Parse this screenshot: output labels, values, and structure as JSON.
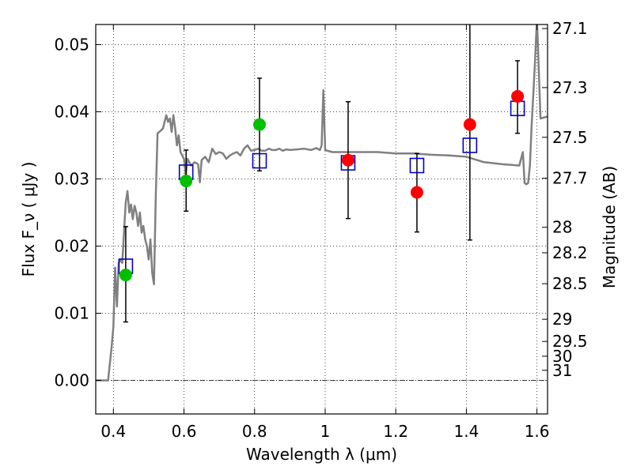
{
  "chart_data": {
    "type": "scatter",
    "xlabel": "Wavelength  λ (μm)",
    "ylabel": "Flux  F_ν  ( μJy )",
    "y2label": "Magnitude (AB)",
    "xlim": [
      0.35,
      1.63
    ],
    "ylim": [
      -0.005,
      0.053
    ],
    "grid": true,
    "x_ticks": [
      {
        "v": 0.4,
        "label": "0.4"
      },
      {
        "v": 0.6,
        "label": "0.6"
      },
      {
        "v": 0.8,
        "label": "0.8"
      },
      {
        "v": 1.0,
        "label": "1"
      },
      {
        "v": 1.2,
        "label": "1.2"
      },
      {
        "v": 1.4,
        "label": "1.4"
      },
      {
        "v": 1.6,
        "label": "1.6"
      }
    ],
    "y_ticks": [
      {
        "v": 0.0,
        "label": "0.00"
      },
      {
        "v": 0.01,
        "label": "0.01"
      },
      {
        "v": 0.02,
        "label": "0.02"
      },
      {
        "v": 0.03,
        "label": "0.03"
      },
      {
        "v": 0.04,
        "label": "0.04"
      },
      {
        "v": 0.05,
        "label": "0.05"
      }
    ],
    "y2_ticks": [
      {
        "label": "27.1",
        "flux": 0.0524
      },
      {
        "label": "27.3",
        "flux": 0.0436
      },
      {
        "label": "27.5",
        "flux": 0.0362
      },
      {
        "label": "27.7",
        "flux": 0.0301
      },
      {
        "label": "28",
        "flux": 0.0228
      },
      {
        "label": "28.2",
        "flux": 0.019
      },
      {
        "label": "28.5",
        "flux": 0.0144
      },
      {
        "label": "29",
        "flux": 0.0091
      },
      {
        "label": "29.5",
        "flux": 0.0058
      },
      {
        "label": "30",
        "flux": 0.0036
      },
      {
        "label": "31",
        "flux": 0.0015
      }
    ],
    "series": [
      {
        "kind": "observed-flux-points",
        "color": "#00c000",
        "points": [
          {
            "x": 0.435,
            "y": 0.0157,
            "err_lo": 0.0087,
            "err_hi": 0.0229
          },
          {
            "x": 0.606,
            "y": 0.0297,
            "err_lo": 0.0252,
            "err_hi": 0.0343
          },
          {
            "x": 0.814,
            "y": 0.0381,
            "err_lo": 0.0312,
            "err_hi": 0.045
          }
        ]
      },
      {
        "kind": "observed-flux-points",
        "color": "#ff0000",
        "points": [
          {
            "x": 1.065,
            "y": 0.0328,
            "err_lo": 0.0241,
            "err_hi": 0.0415
          },
          {
            "x": 1.26,
            "y": 0.028,
            "err_lo": 0.0221,
            "err_hi": 0.0338
          },
          {
            "x": 1.41,
            "y": 0.0381,
            "err_lo": 0.0209,
            "err_hi": 0.0538
          },
          {
            "x": 1.545,
            "y": 0.0423,
            "err_lo": 0.0368,
            "err_hi": 0.0476
          }
        ]
      },
      {
        "kind": "model-band-flux",
        "color": "#0000cc",
        "points": [
          {
            "x": 0.435,
            "y": 0.017
          },
          {
            "x": 0.606,
            "y": 0.031
          },
          {
            "x": 0.814,
            "y": 0.0327
          },
          {
            "x": 1.065,
            "y": 0.0324
          },
          {
            "x": 1.26,
            "y": 0.032
          },
          {
            "x": 1.41,
            "y": 0.035
          },
          {
            "x": 1.545,
            "y": 0.0405
          }
        ]
      },
      {
        "kind": "model-spectrum",
        "color": "#808080",
        "x": [
          0.35,
          0.385,
          0.395,
          0.4,
          0.405,
          0.41,
          0.415,
          0.42,
          0.425,
          0.43,
          0.435,
          0.44,
          0.445,
          0.45,
          0.455,
          0.46,
          0.465,
          0.47,
          0.475,
          0.48,
          0.485,
          0.49,
          0.495,
          0.5,
          0.505,
          0.51,
          0.515,
          0.52,
          0.525,
          0.53,
          0.54,
          0.55,
          0.555,
          0.56,
          0.565,
          0.57,
          0.575,
          0.58,
          0.585,
          0.59,
          0.595,
          0.6,
          0.605,
          0.61,
          0.62,
          0.63,
          0.64,
          0.645,
          0.65,
          0.66,
          0.67,
          0.68,
          0.69,
          0.7,
          0.71,
          0.72,
          0.73,
          0.74,
          0.75,
          0.76,
          0.77,
          0.78,
          0.79,
          0.8,
          0.81,
          0.82,
          0.83,
          0.84,
          0.85,
          0.86,
          0.87,
          0.88,
          0.89,
          0.9,
          0.92,
          0.94,
          0.96,
          0.975,
          0.985,
          0.99,
          0.995,
          1.0,
          1.02,
          1.05,
          1.08,
          1.1,
          1.15,
          1.2,
          1.25,
          1.3,
          1.35,
          1.4,
          1.45,
          1.5,
          1.55,
          1.56,
          1.565,
          1.57,
          1.575,
          1.58,
          1.585,
          1.59,
          1.595,
          1.6,
          1.61,
          1.63
        ],
        "y": [
          0.0,
          0.0,
          0.005,
          0.008,
          0.0168,
          0.011,
          0.0175,
          0.018,
          0.0175,
          0.022,
          0.0265,
          0.0282,
          0.025,
          0.0262,
          0.024,
          0.026,
          0.025,
          0.023,
          0.025,
          0.022,
          0.023,
          0.021,
          0.02,
          0.018,
          0.021,
          0.016,
          0.0143,
          0.027,
          0.0368,
          0.037,
          0.0375,
          0.0395,
          0.0385,
          0.039,
          0.037,
          0.0395,
          0.0375,
          0.035,
          0.0365,
          0.034,
          0.0335,
          0.033,
          0.0305,
          0.033,
          0.032,
          0.0325,
          0.0322,
          0.0295,
          0.0328,
          0.0333,
          0.0325,
          0.0345,
          0.0337,
          0.034,
          0.0338,
          0.033,
          0.0335,
          0.0338,
          0.034,
          0.0335,
          0.0345,
          0.035,
          0.0342,
          0.0343,
          0.0345,
          0.0342,
          0.0342,
          0.0345,
          0.0343,
          0.0343,
          0.0345,
          0.0342,
          0.0344,
          0.0343,
          0.0344,
          0.0345,
          0.0343,
          0.0346,
          0.0343,
          0.035,
          0.0432,
          0.0343,
          0.034,
          0.034,
          0.034,
          0.034,
          0.034,
          0.0338,
          0.0338,
          0.0336,
          0.0335,
          0.0333,
          0.0325,
          0.0322,
          0.032,
          0.034,
          0.0294,
          0.0292,
          0.0294,
          0.032,
          0.038,
          0.043,
          0.048,
          0.054,
          0.039,
          0.0393
        ]
      }
    ]
  }
}
